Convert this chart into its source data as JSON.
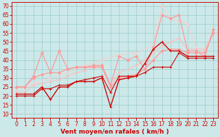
{
  "background_color": "#cce8e8",
  "grid_color": "#99cccc",
  "xlabel": "Vent moyen/en rafales ( km/h )",
  "ylabel_ticks": [
    10,
    15,
    20,
    25,
    30,
    35,
    40,
    45,
    50,
    55,
    60,
    65,
    70
  ],
  "xlim": [
    -0.5,
    23.5
  ],
  "ylim": [
    8,
    72
  ],
  "xticks": [
    0,
    1,
    2,
    3,
    4,
    5,
    6,
    7,
    8,
    9,
    10,
    11,
    12,
    13,
    14,
    15,
    16,
    17,
    18,
    19,
    20,
    21,
    22,
    23
  ],
  "xlabel_color": "#cc0000",
  "tick_color": "#cc0000",
  "label_fontsize": 6.5,
  "tick_fontsize": 5.5,
  "series": [
    {
      "x": [
        0,
        1,
        2,
        3,
        4,
        5,
        6,
        7,
        8,
        9,
        10,
        11,
        12,
        13,
        14,
        15,
        16,
        17,
        18,
        19,
        20,
        21,
        22,
        23
      ],
      "y": [
        21,
        21,
        21,
        25,
        18,
        25,
        25,
        28,
        28,
        28,
        30,
        14,
        29,
        30,
        31,
        38,
        46,
        50,
        45,
        45,
        42,
        42,
        42,
        42
      ],
      "color": "#cc0000",
      "lw": 1.0,
      "marker": "+",
      "ms": 3.5,
      "alpha": 1.0,
      "zorder": 5
    },
    {
      "x": [
        0,
        1,
        2,
        3,
        4,
        5,
        6,
        7,
        8,
        9,
        10,
        11,
        12,
        13,
        14,
        15,
        16,
        17,
        18,
        19,
        20,
        21,
        22,
        23
      ],
      "y": [
        20,
        20,
        20,
        24,
        24,
        26,
        26,
        28,
        29,
        30,
        31,
        22,
        31,
        31,
        31,
        33,
        36,
        36,
        36,
        44,
        41,
        41,
        41,
        41
      ],
      "color": "#cc0000",
      "lw": 0.8,
      "marker": "+",
      "ms": 3.0,
      "alpha": 1.0,
      "zorder": 4
    },
    {
      "x": [
        0,
        1,
        2,
        3,
        4,
        5,
        6,
        7,
        8,
        9,
        10,
        11,
        12,
        13,
        14,
        15,
        16,
        17,
        18,
        19,
        20,
        21,
        22,
        23
      ],
      "y": [
        25,
        25,
        30,
        32,
        33,
        33,
        35,
        36,
        36,
        36,
        36,
        25,
        30,
        31,
        32,
        35,
        40,
        45,
        46,
        46,
        44,
        44,
        44,
        55
      ],
      "color": "#ff9999",
      "lw": 0.9,
      "marker": "D",
      "ms": 2.0,
      "alpha": 1.0,
      "zorder": 3
    },
    {
      "x": [
        0,
        1,
        2,
        3,
        4,
        5,
        6,
        7,
        8,
        9,
        10,
        11,
        12,
        13,
        14,
        15,
        16,
        17,
        18,
        19,
        20,
        21,
        22,
        23
      ],
      "y": [
        25,
        25,
        31,
        44,
        33,
        45,
        35,
        36,
        36,
        37,
        37,
        26,
        42,
        40,
        42,
        35,
        47,
        65,
        63,
        65,
        45,
        45,
        42,
        57
      ],
      "color": "#ff9999",
      "lw": 0.9,
      "marker": "D",
      "ms": 2.0,
      "alpha": 1.0,
      "zorder": 3
    },
    {
      "x": [
        0,
        1,
        2,
        3,
        4,
        5,
        6,
        7,
        8,
        9,
        10,
        11,
        12,
        13,
        14,
        15,
        16,
        17,
        18,
        19,
        20,
        21,
        22,
        23
      ],
      "y": [
        22,
        22,
        26,
        27,
        28,
        29,
        31,
        33,
        34,
        36,
        37,
        26,
        33,
        35,
        37,
        40,
        44,
        48,
        50,
        52,
        46,
        46,
        46,
        55
      ],
      "color": "#ffbbbb",
      "lw": 0.8,
      "marker": "D",
      "ms": 1.5,
      "alpha": 0.9,
      "zorder": 2
    },
    {
      "x": [
        0,
        2,
        4,
        6,
        8,
        10,
        12,
        14,
        16,
        17,
        18,
        19,
        20,
        21,
        22,
        23
      ],
      "y": [
        23,
        27,
        30,
        33,
        37,
        40,
        43,
        44,
        48,
        70,
        63,
        62,
        60,
        47,
        44,
        57
      ],
      "color": "#ffcccc",
      "lw": 0.8,
      "marker": "D",
      "ms": 1.5,
      "alpha": 0.85,
      "zorder": 2
    }
  ]
}
